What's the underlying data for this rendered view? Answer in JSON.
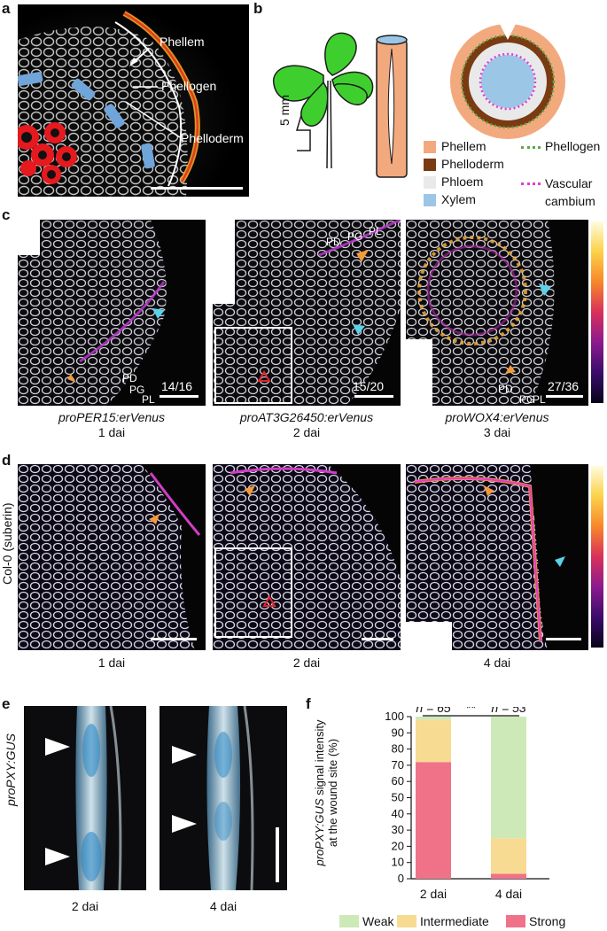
{
  "panel_labels": {
    "a": "a",
    "b": "b",
    "c": "c",
    "d": "d",
    "e": "e",
    "f": "f"
  },
  "panel_a": {
    "annotations": [
      "Phellem",
      "Phellogen",
      "Phelloderm"
    ]
  },
  "panel_b": {
    "scale_label": "5 mm",
    "legend": [
      {
        "label": "Phellem",
        "color": "#F3A97E",
        "type": "fill"
      },
      {
        "label": "Phelloderm",
        "color": "#7A3A12",
        "type": "fill"
      },
      {
        "label": "Phloem",
        "color": "#E9E9E9",
        "type": "fill"
      },
      {
        "label": "Xylem",
        "color": "#9CC6E6",
        "type": "fill"
      },
      {
        "label": "Phellogen",
        "color": "#5BA84A",
        "type": "dotted"
      },
      {
        "label": "Vascular cambium",
        "color": "#E03BD8",
        "type": "dotted"
      }
    ]
  },
  "panel_c": {
    "images": [
      {
        "caption_line1": "proPER15:erVenus",
        "caption_line2": "1 dai",
        "ratio": "14/16",
        "layers": [
          "PD",
          "PG",
          "PL"
        ]
      },
      {
        "caption_line1": "proAT3G26450:erVenus",
        "caption_line2": "2 dai",
        "ratio": "15/20",
        "layers": [
          "PD",
          "PG",
          "PL"
        ]
      },
      {
        "caption_line1": "proWOX4:erVenus",
        "caption_line2": "3 dai",
        "ratio": "27/36",
        "layers": [
          "PD",
          "PG",
          "PL"
        ]
      }
    ]
  },
  "panel_d": {
    "row_label": "Col-0 (suberin)",
    "captions": [
      "1 dai",
      "2 dai",
      "4 dai"
    ]
  },
  "panel_e": {
    "row_label": "proPXY:GUS",
    "captions": [
      "2 dai",
      "4 dai"
    ]
  },
  "panel_f": {
    "significance": "**",
    "colors": {
      "weak": "#CDE9B7",
      "intermediate": "#F8DB92",
      "strong": "#F07289"
    },
    "chart_data": {
      "type": "bar",
      "stacked": true,
      "categories": [
        "2 dai",
        "4 dai"
      ],
      "n_labels": [
        "n = 65",
        "n = 53"
      ],
      "series": [
        {
          "name": "Strong",
          "values": [
            72,
            3
          ]
        },
        {
          "name": "Intermediate",
          "values": [
            26,
            22
          ]
        },
        {
          "name": "Weak",
          "values": [
            2,
            75
          ]
        }
      ],
      "ylabel": "proPXY:GUS signal intensity at the wound site (%)",
      "ylim": [
        0,
        100
      ],
      "yticks": [
        0,
        10,
        20,
        30,
        40,
        50,
        60,
        70,
        80,
        90,
        100
      ],
      "legend_position": "bottom"
    }
  }
}
